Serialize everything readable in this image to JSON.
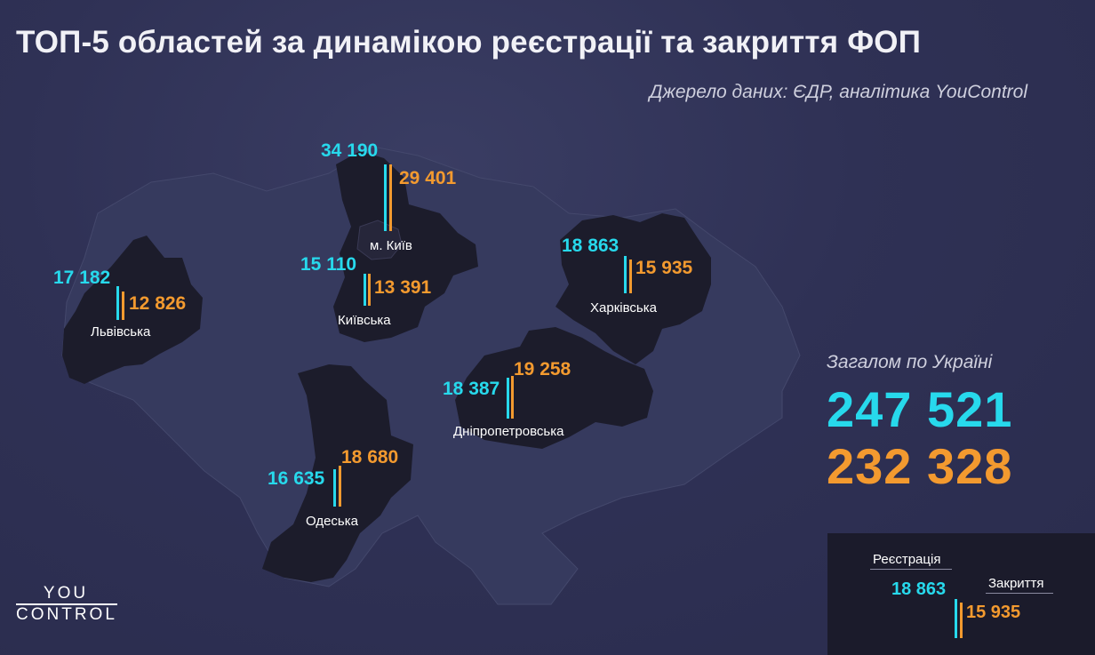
{
  "title": "ТОП-5 областей за динамікою реєстрації та закриття ФОП",
  "source": "Джерело даних: ЄДР, аналітика YouControl",
  "colors": {
    "registration": "#27d9ec",
    "closure": "#f39a2f",
    "region_fill": "#1c1c2b"
  },
  "regions": [
    {
      "name": "м. Київ",
      "registration": "34 190",
      "closure": "29 401"
    },
    {
      "name": "Київська",
      "registration": "15 110",
      "closure": "13 391"
    },
    {
      "name": "Львівська",
      "registration": "17 182",
      "closure": "12 826"
    },
    {
      "name": "Харківська",
      "registration": "18 863",
      "closure": "15 935"
    },
    {
      "name": "Дніпропетровська",
      "registration": "18 387",
      "closure": "19 258"
    },
    {
      "name": "Одеська",
      "registration": "16 635",
      "closure": "18 680"
    }
  ],
  "totals": {
    "label": "Загалом по Україні",
    "registration": "247 521",
    "closure": "232 328"
  },
  "legend": {
    "registration_label": "Реєстрація",
    "closure_label": "Закриття",
    "registration_value": "18 863",
    "closure_value": "15 935"
  },
  "logo": {
    "line1": "YOU",
    "line2": "CONTROL"
  }
}
